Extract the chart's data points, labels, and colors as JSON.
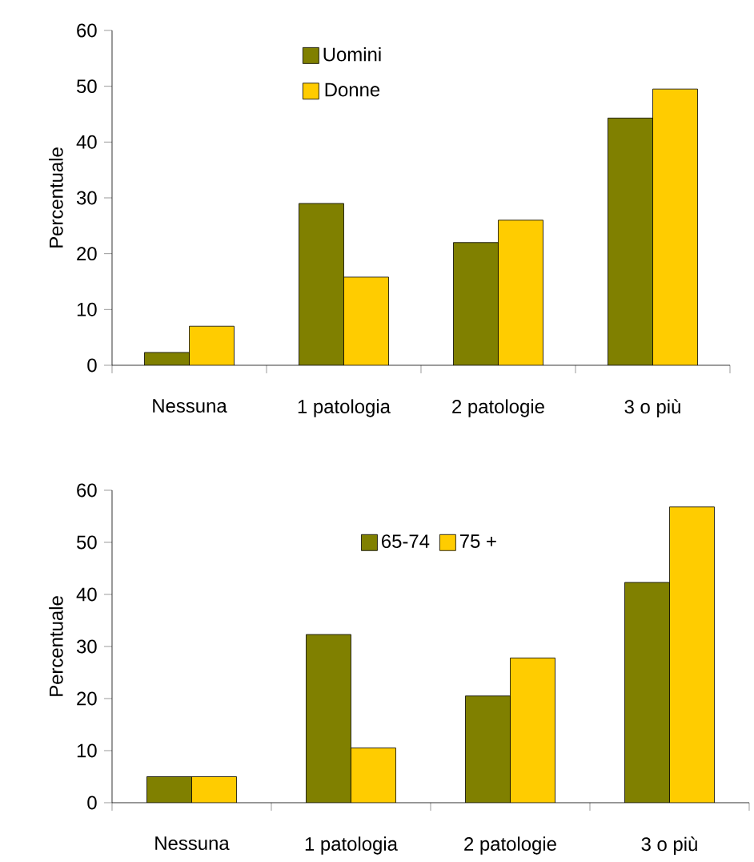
{
  "chart_data": [
    {
      "type": "bar",
      "ylabel": "Percentuale",
      "categories": [
        "Nessuna",
        "1 patologia",
        "2 patologie",
        "3 o più"
      ],
      "ylim": [
        0,
        60
      ],
      "yticks": [
        0,
        10,
        20,
        30,
        40,
        50,
        60
      ],
      "legend": "top left",
      "series": [
        {
          "name": "Uomini",
          "color": "#808000",
          "values": [
            2.3,
            29,
            22,
            44.3
          ]
        },
        {
          "name": "Donne",
          "color": "#ffcc00",
          "values": [
            7,
            15.8,
            26,
            49.5
          ]
        }
      ]
    },
    {
      "type": "bar",
      "ylabel": "Percentuale",
      "categories": [
        "Nessuna",
        "1 patologia",
        "2 patologie",
        "3 o più"
      ],
      "ylim": [
        0,
        60
      ],
      "yticks": [
        0,
        10,
        20,
        30,
        40,
        50,
        60
      ],
      "legend": "top",
      "series": [
        {
          "name": "65-74",
          "color": "#808000",
          "values": [
            5,
            32.3,
            20.5,
            42.3
          ]
        },
        {
          "name": "75 +",
          "color": "#ffcc00",
          "values": [
            5,
            10.5,
            27.8,
            56.8
          ]
        }
      ]
    }
  ]
}
